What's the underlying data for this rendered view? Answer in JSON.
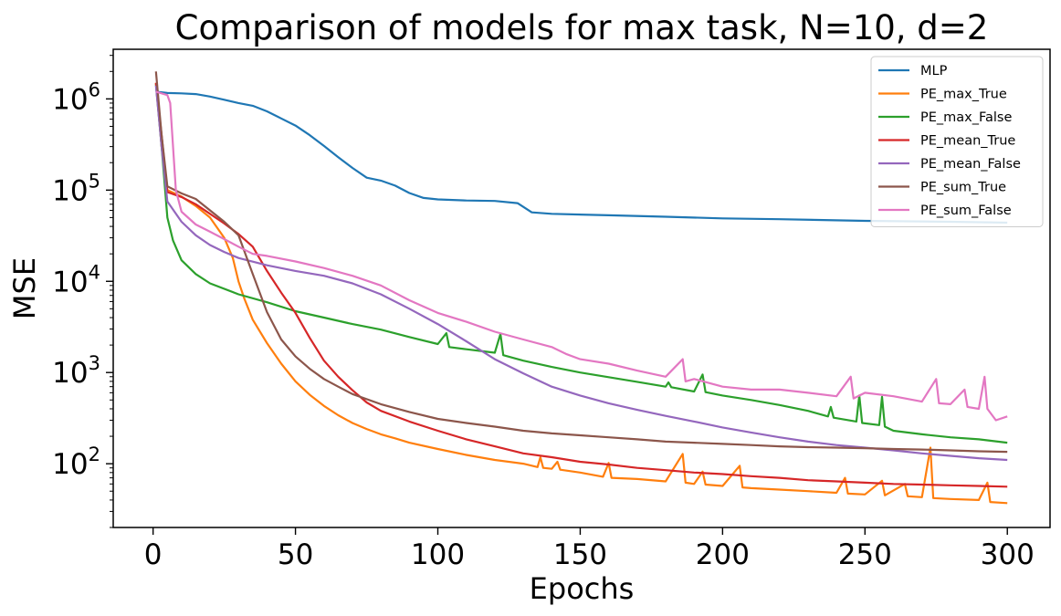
{
  "chart_data": {
    "type": "line",
    "title": "Comparison of models for max task, N=10, d=2",
    "xlabel": "Epochs",
    "ylabel": "MSE",
    "xlim": [
      -14,
      315
    ],
    "ylim": [
      20,
      3500000
    ],
    "yscale": "log",
    "grid": false,
    "legend_position": "top-right",
    "xticks": [
      0,
      50,
      100,
      150,
      200,
      250,
      300
    ],
    "yticks": [
      {
        "base": "10",
        "exp": "2",
        "value": 100
      },
      {
        "base": "10",
        "exp": "3",
        "value": 1000
      },
      {
        "base": "10",
        "exp": "4",
        "value": 10000
      },
      {
        "base": "10",
        "exp": "5",
        "value": 100000
      },
      {
        "base": "10",
        "exp": "6",
        "value": 1000000
      }
    ],
    "series": [
      {
        "name": "MLP",
        "color": "#1f77b4",
        "points": [
          [
            1,
            1200000
          ],
          [
            5,
            1160000
          ],
          [
            10,
            1150000
          ],
          [
            15,
            1130000
          ],
          [
            20,
            1060000
          ],
          [
            25,
            980000
          ],
          [
            30,
            900000
          ],
          [
            35,
            840000
          ],
          [
            40,
            730000
          ],
          [
            45,
            610000
          ],
          [
            50,
            510000
          ],
          [
            55,
            400000
          ],
          [
            60,
            305000
          ],
          [
            65,
            230000
          ],
          [
            70,
            175000
          ],
          [
            75,
            137000
          ],
          [
            80,
            127000
          ],
          [
            85,
            112000
          ],
          [
            90,
            93000
          ],
          [
            95,
            82000
          ],
          [
            100,
            79000
          ],
          [
            110,
            77000
          ],
          [
            120,
            76000
          ],
          [
            128,
            72000
          ],
          [
            133,
            57000
          ],
          [
            140,
            55000
          ],
          [
            160,
            53000
          ],
          [
            180,
            51000
          ],
          [
            200,
            49000
          ],
          [
            220,
            48000
          ],
          [
            250,
            46000
          ],
          [
            280,
            45000
          ],
          [
            300,
            44000
          ]
        ]
      },
      {
        "name": "PE_max_True",
        "color": "#ff7f0e",
        "points": [
          [
            1,
            1500000
          ],
          [
            3,
            300000
          ],
          [
            5,
            100000
          ],
          [
            10,
            85000
          ],
          [
            15,
            67000
          ],
          [
            20,
            50000
          ],
          [
            25,
            30000
          ],
          [
            28,
            18000
          ],
          [
            30,
            10000
          ],
          [
            32,
            6500
          ],
          [
            35,
            3800
          ],
          [
            40,
            2100
          ],
          [
            45,
            1250
          ],
          [
            50,
            800
          ],
          [
            55,
            570
          ],
          [
            60,
            430
          ],
          [
            65,
            340
          ],
          [
            70,
            280
          ],
          [
            75,
            240
          ],
          [
            80,
            210
          ],
          [
            85,
            190
          ],
          [
            90,
            170
          ],
          [
            100,
            145
          ],
          [
            110,
            125
          ],
          [
            120,
            110
          ],
          [
            130,
            100
          ],
          [
            135,
            92
          ],
          [
            136,
            118
          ],
          [
            137,
            90
          ],
          [
            140,
            88
          ],
          [
            142,
            105
          ],
          [
            143,
            86
          ],
          [
            150,
            80
          ],
          [
            158,
            72
          ],
          [
            160,
            102
          ],
          [
            161,
            70
          ],
          [
            170,
            68
          ],
          [
            180,
            64
          ],
          [
            186,
            128
          ],
          [
            187,
            62
          ],
          [
            190,
            60
          ],
          [
            193,
            82
          ],
          [
            194,
            59
          ],
          [
            200,
            57
          ],
          [
            206,
            95
          ],
          [
            207,
            55
          ],
          [
            210,
            54
          ],
          [
            220,
            52
          ],
          [
            230,
            50
          ],
          [
            240,
            48
          ],
          [
            243,
            70
          ],
          [
            244,
            47
          ],
          [
            250,
            46
          ],
          [
            256,
            65
          ],
          [
            257,
            45
          ],
          [
            264,
            60
          ],
          [
            265,
            44
          ],
          [
            270,
            43
          ],
          [
            273,
            150
          ],
          [
            274,
            42
          ],
          [
            280,
            41
          ],
          [
            290,
            40
          ],
          [
            293,
            62
          ],
          [
            294,
            38
          ],
          [
            300,
            37
          ]
        ]
      },
      {
        "name": "PE_max_False",
        "color": "#2ca02c",
        "points": [
          [
            1,
            1450000
          ],
          [
            3,
            300000
          ],
          [
            5,
            50000
          ],
          [
            7,
            28000
          ],
          [
            10,
            17000
          ],
          [
            15,
            12000
          ],
          [
            20,
            9500
          ],
          [
            30,
            7200
          ],
          [
            40,
            5900
          ],
          [
            50,
            4700
          ],
          [
            60,
            4000
          ],
          [
            70,
            3400
          ],
          [
            80,
            2950
          ],
          [
            90,
            2450
          ],
          [
            100,
            2050
          ],
          [
            103,
            2700
          ],
          [
            104,
            1900
          ],
          [
            110,
            1800
          ],
          [
            120,
            1650
          ],
          [
            122,
            2650
          ],
          [
            123,
            1550
          ],
          [
            130,
            1350
          ],
          [
            140,
            1150
          ],
          [
            150,
            1000
          ],
          [
            160,
            890
          ],
          [
            170,
            790
          ],
          [
            180,
            700
          ],
          [
            181,
            780
          ],
          [
            182,
            690
          ],
          [
            190,
            620
          ],
          [
            193,
            950
          ],
          [
            194,
            610
          ],
          [
            200,
            560
          ],
          [
            210,
            500
          ],
          [
            220,
            440
          ],
          [
            230,
            380
          ],
          [
            237,
            330
          ],
          [
            238,
            420
          ],
          [
            239,
            320
          ],
          [
            247,
            290
          ],
          [
            248,
            560
          ],
          [
            249,
            280
          ],
          [
            255,
            265
          ],
          [
            256,
            540
          ],
          [
            257,
            255
          ],
          [
            260,
            230
          ],
          [
            270,
            210
          ],
          [
            280,
            195
          ],
          [
            290,
            185
          ],
          [
            300,
            170
          ]
        ]
      },
      {
        "name": "PE_mean_True",
        "color": "#d62728",
        "points": [
          [
            1,
            1500000
          ],
          [
            3,
            400000
          ],
          [
            5,
            95000
          ],
          [
            10,
            84000
          ],
          [
            15,
            70000
          ],
          [
            20,
            55000
          ],
          [
            25,
            43000
          ],
          [
            30,
            33000
          ],
          [
            35,
            24000
          ],
          [
            40,
            13000
          ],
          [
            45,
            7500
          ],
          [
            50,
            4500
          ],
          [
            55,
            2400
          ],
          [
            60,
            1350
          ],
          [
            65,
            900
          ],
          [
            70,
            640
          ],
          [
            75,
            470
          ],
          [
            80,
            380
          ],
          [
            90,
            290
          ],
          [
            100,
            230
          ],
          [
            110,
            185
          ],
          [
            120,
            155
          ],
          [
            130,
            130
          ],
          [
            140,
            118
          ],
          [
            150,
            105
          ],
          [
            160,
            98
          ],
          [
            170,
            90
          ],
          [
            180,
            85
          ],
          [
            190,
            80
          ],
          [
            200,
            77
          ],
          [
            210,
            73
          ],
          [
            220,
            70
          ],
          [
            230,
            66
          ],
          [
            240,
            64
          ],
          [
            250,
            62
          ],
          [
            260,
            60
          ],
          [
            270,
            59
          ],
          [
            280,
            58
          ],
          [
            290,
            57
          ],
          [
            300,
            56
          ]
        ]
      },
      {
        "name": "PE_mean_False",
        "color": "#9467bd",
        "points": [
          [
            1,
            1400000
          ],
          [
            3,
            300000
          ],
          [
            5,
            75000
          ],
          [
            10,
            45000
          ],
          [
            15,
            32000
          ],
          [
            20,
            25000
          ],
          [
            25,
            21000
          ],
          [
            30,
            18000
          ],
          [
            40,
            15000
          ],
          [
            50,
            13000
          ],
          [
            60,
            11500
          ],
          [
            70,
            9500
          ],
          [
            80,
            7200
          ],
          [
            90,
            5000
          ],
          [
            100,
            3400
          ],
          [
            110,
            2200
          ],
          [
            120,
            1400
          ],
          [
            130,
            980
          ],
          [
            140,
            700
          ],
          [
            150,
            560
          ],
          [
            160,
            460
          ],
          [
            170,
            390
          ],
          [
            180,
            335
          ],
          [
            190,
            290
          ],
          [
            200,
            250
          ],
          [
            210,
            220
          ],
          [
            220,
            195
          ],
          [
            230,
            175
          ],
          [
            240,
            160
          ],
          [
            250,
            150
          ],
          [
            260,
            140
          ],
          [
            270,
            130
          ],
          [
            280,
            122
          ],
          [
            290,
            115
          ],
          [
            300,
            110
          ]
        ]
      },
      {
        "name": "PE_sum_True",
        "color": "#8c564b",
        "points": [
          [
            1,
            2000000
          ],
          [
            3,
            400000
          ],
          [
            5,
            110000
          ],
          [
            10,
            92000
          ],
          [
            15,
            80000
          ],
          [
            20,
            60000
          ],
          [
            25,
            45000
          ],
          [
            30,
            32000
          ],
          [
            35,
            12000
          ],
          [
            40,
            4600
          ],
          [
            45,
            2300
          ],
          [
            50,
            1500
          ],
          [
            55,
            1100
          ],
          [
            60,
            850
          ],
          [
            65,
            700
          ],
          [
            70,
            580
          ],
          [
            80,
            450
          ],
          [
            90,
            370
          ],
          [
            100,
            310
          ],
          [
            110,
            280
          ],
          [
            120,
            255
          ],
          [
            130,
            230
          ],
          [
            140,
            215
          ],
          [
            150,
            205
          ],
          [
            160,
            195
          ],
          [
            170,
            185
          ],
          [
            180,
            175
          ],
          [
            190,
            170
          ],
          [
            200,
            165
          ],
          [
            210,
            160
          ],
          [
            220,
            155
          ],
          [
            230,
            152
          ],
          [
            240,
            150
          ],
          [
            250,
            148
          ],
          [
            260,
            145
          ],
          [
            270,
            143
          ],
          [
            280,
            140
          ],
          [
            290,
            137
          ],
          [
            300,
            135
          ]
        ]
      },
      {
        "name": "PE_sum_False",
        "color": "#e377c2",
        "points": [
          [
            1,
            1200000
          ],
          [
            3,
            1150000
          ],
          [
            5,
            1100000
          ],
          [
            6,
            900000
          ],
          [
            7,
            300000
          ],
          [
            8,
            100000
          ],
          [
            10,
            58000
          ],
          [
            15,
            42000
          ],
          [
            20,
            35000
          ],
          [
            25,
            29000
          ],
          [
            30,
            24000
          ],
          [
            35,
            20000
          ],
          [
            40,
            19000
          ],
          [
            50,
            16500
          ],
          [
            60,
            14000
          ],
          [
            70,
            11500
          ],
          [
            80,
            9000
          ],
          [
            90,
            6200
          ],
          [
            100,
            4500
          ],
          [
            110,
            3600
          ],
          [
            120,
            2800
          ],
          [
            130,
            2300
          ],
          [
            140,
            1900
          ],
          [
            145,
            1600
          ],
          [
            150,
            1400
          ],
          [
            160,
            1250
          ],
          [
            170,
            1050
          ],
          [
            180,
            900
          ],
          [
            186,
            1400
          ],
          [
            187,
            800
          ],
          [
            190,
            850
          ],
          [
            200,
            700
          ],
          [
            210,
            650
          ],
          [
            220,
            650
          ],
          [
            230,
            600
          ],
          [
            240,
            550
          ],
          [
            245,
            900
          ],
          [
            246,
            520
          ],
          [
            250,
            600
          ],
          [
            260,
            550
          ],
          [
            270,
            480
          ],
          [
            275,
            850
          ],
          [
            276,
            460
          ],
          [
            280,
            450
          ],
          [
            285,
            650
          ],
          [
            286,
            420
          ],
          [
            290,
            400
          ],
          [
            292,
            900
          ],
          [
            293,
            400
          ],
          [
            296,
            300
          ],
          [
            300,
            330
          ]
        ]
      }
    ]
  }
}
